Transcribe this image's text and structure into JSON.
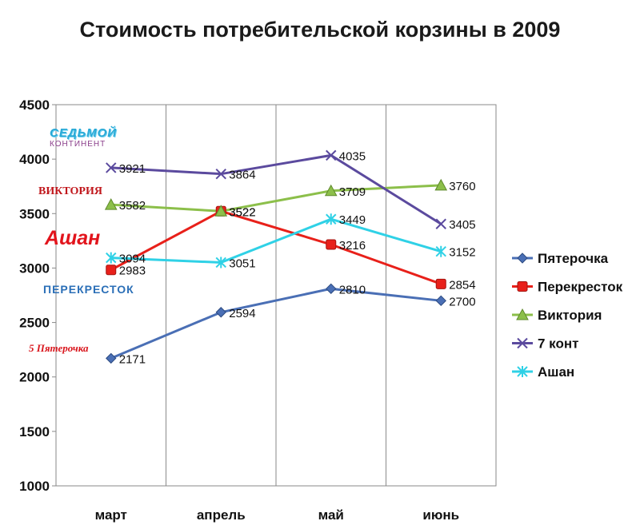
{
  "chart_data": {
    "type": "line",
    "title": "Стоимость потребительской корзины в 2009",
    "xlabel": "",
    "ylabel": "",
    "categories": [
      "март",
      "апрель",
      "май",
      "июнь"
    ],
    "ylim": [
      1000,
      4500
    ],
    "yticks": [
      1000,
      1500,
      2000,
      2500,
      3000,
      3500,
      4000,
      4500
    ],
    "grid": "vertical",
    "legend_position": "right",
    "series": [
      {
        "name": "Пятерочка",
        "color": "#4a6fb5",
        "marker": "diamond",
        "values": [
          2171,
          2594,
          2810,
          2700
        ],
        "labels": [
          "2171",
          "2594",
          "2810",
          "2700"
        ]
      },
      {
        "name": "Перекресток",
        "color": "#e8201a",
        "marker": "square",
        "values": [
          2983,
          3522,
          3216,
          2854
        ],
        "labels": [
          "2983",
          "3522",
          "3216",
          "2854"
        ]
      },
      {
        "name": "Виктория",
        "color": "#8cbf4a",
        "marker": "triangle",
        "values": [
          3582,
          3522,
          3709,
          3760
        ],
        "labels": [
          "3582",
          "3522",
          "3709",
          "3760"
        ]
      },
      {
        "name": "7 конт",
        "color": "#5b4a9e",
        "marker": "x",
        "values": [
          3921,
          3864,
          4035,
          3405
        ],
        "labels": [
          "3921",
          "3864",
          "4035",
          "3405"
        ]
      },
      {
        "name": "Ашан",
        "color": "#2fd1e6",
        "marker": "star",
        "values": [
          3094,
          3051,
          3449,
          3152
        ],
        "labels": [
          "3094",
          "3051",
          "3449",
          "3152"
        ]
      }
    ]
  },
  "logos": {
    "continent_top": "СЕДЬМОЙ",
    "continent_bottom": "КОНТИНЕНТ",
    "victoria": "ВИКТОРИЯ",
    "auchan": "Ашан",
    "perekrestok": "ПЕРЕКРЕСТОК",
    "pyaterochka": "5 Пятерочка"
  }
}
